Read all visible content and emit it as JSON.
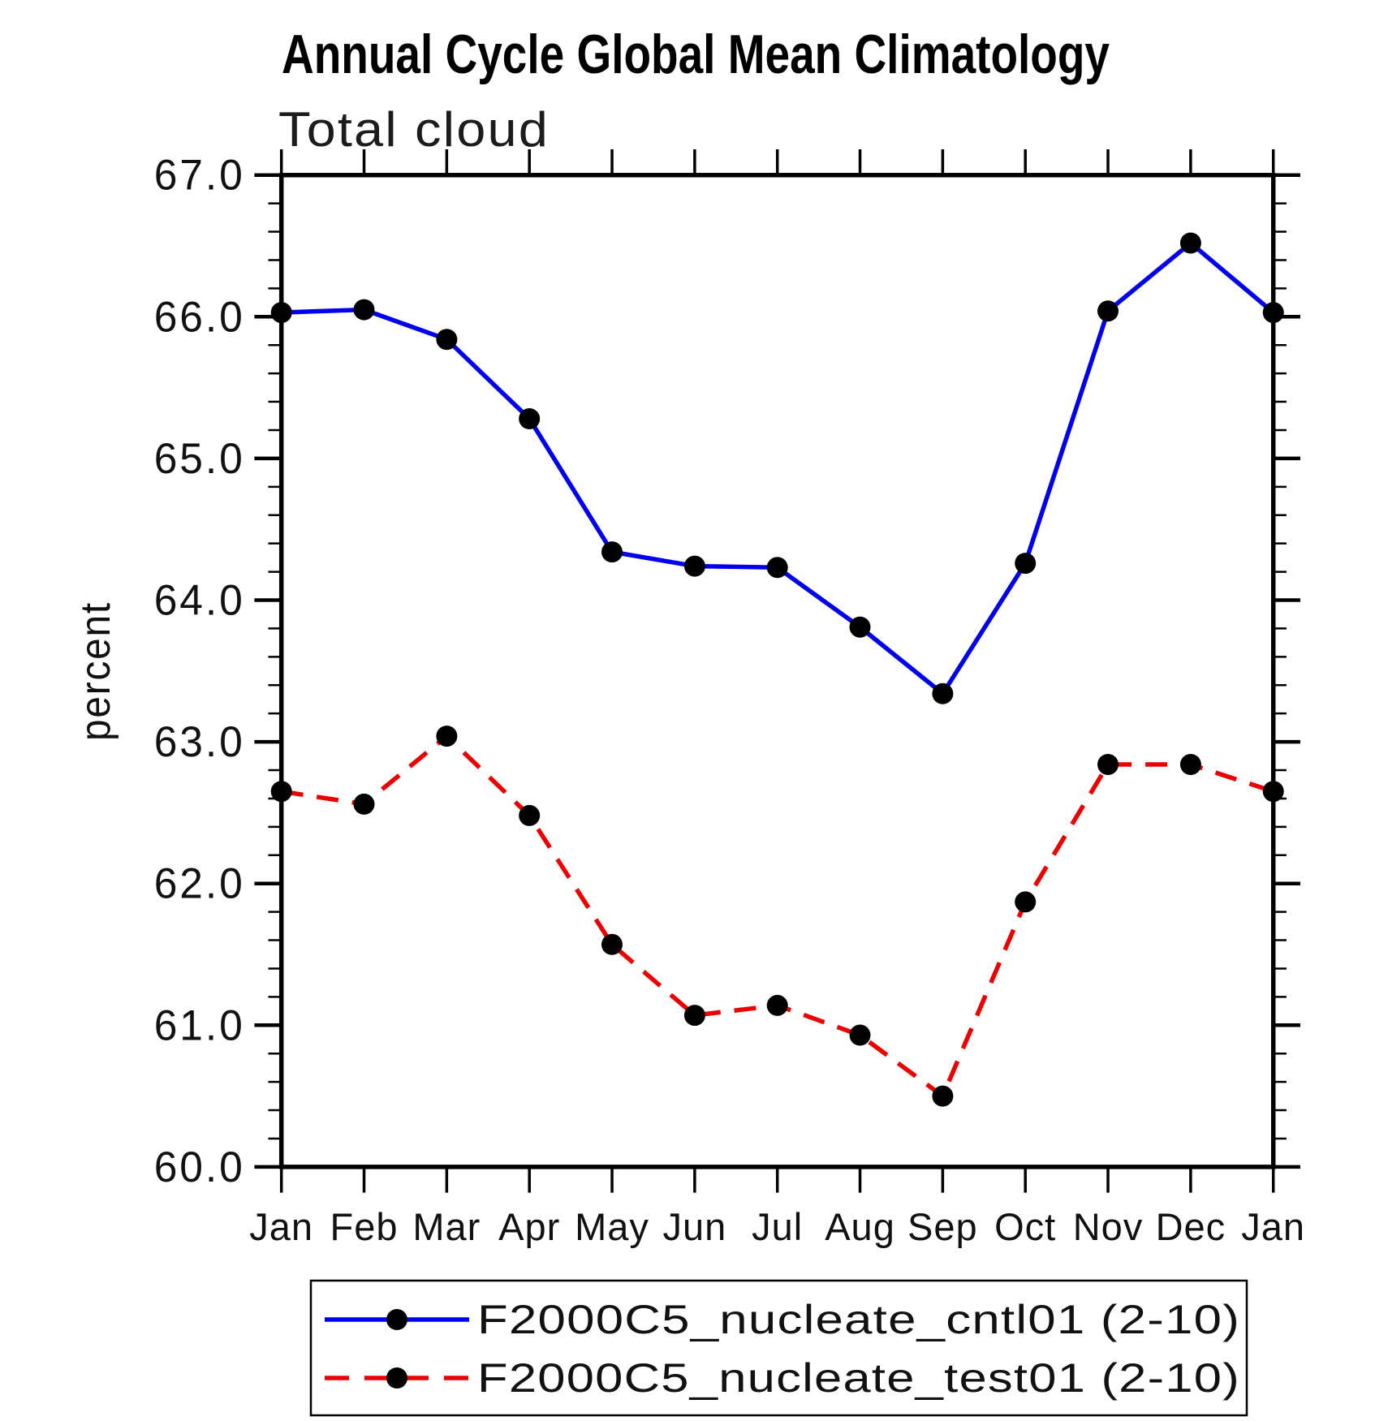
{
  "figure": {
    "title": "Annual Cycle Global Mean Climatology",
    "subtitle": "Total cloud",
    "ylabel": "percent"
  },
  "chart_data": {
    "type": "line",
    "title": "Annual Cycle Global Mean Climatology",
    "subtitle": "Total cloud",
    "xlabel": "",
    "ylabel": "percent",
    "x_categories": [
      "Jan",
      "Feb",
      "Mar",
      "Apr",
      "May",
      "Jun",
      "Jul",
      "Aug",
      "Sep",
      "Oct",
      "Nov",
      "Dec",
      "Jan"
    ],
    "ylim": [
      60.0,
      67.0
    ],
    "y_major_ticks": [
      60.0,
      61.0,
      62.0,
      63.0,
      64.0,
      65.0,
      66.0,
      67.0
    ],
    "y_tick_labels": [
      "60.0",
      "61.0",
      "62.0",
      "63.0",
      "64.0",
      "65.0",
      "66.0",
      "67.0"
    ],
    "y_minor_step": 0.2,
    "grid": false,
    "legend_position": "bottom",
    "marker_color": "#000000",
    "axis_color": "#000000",
    "series": [
      {
        "name": "F2000C5_nucleate_cntl01 (2-10)",
        "color": "#0000ee",
        "line_style": "solid",
        "marker": "circle",
        "values": [
          66.03,
          66.05,
          65.84,
          65.28,
          64.34,
          64.24,
          64.23,
          63.81,
          63.34,
          64.26,
          66.04,
          66.52,
          66.03
        ]
      },
      {
        "name": "F2000C5_nucleate_test01 (2-10)",
        "color": "#ee0000",
        "line_style": "dashed",
        "marker": "circle",
        "values": [
          62.65,
          62.56,
          63.04,
          62.48,
          61.57,
          61.07,
          61.14,
          60.93,
          60.5,
          61.87,
          62.84,
          62.84,
          62.65
        ]
      }
    ]
  }
}
